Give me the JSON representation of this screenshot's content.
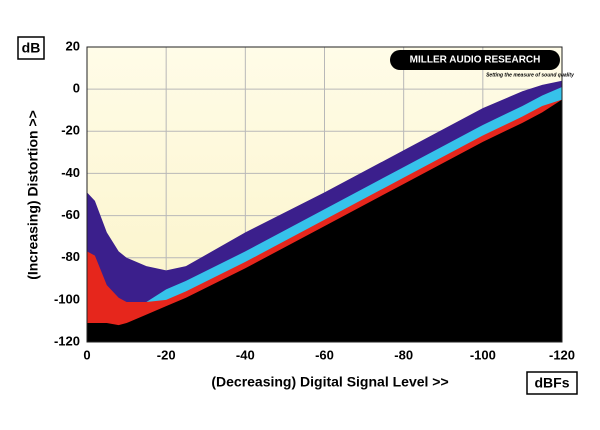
{
  "chart_data": {
    "type": "area",
    "y_unit_label": "dB",
    "x_unit_label": "dBFs",
    "ylabel": "(Increasing) Distortion >>",
    "xlabel": "(Decreasing) Digital Signal Level >>",
    "logo": "MILLER AUDIO RESEARCH",
    "logo_tagline": "Setting the measure of sound quality",
    "x": [
      0,
      -2,
      -5,
      -8,
      -10,
      -15,
      -20,
      -25,
      -40,
      -60,
      -80,
      -100,
      -110,
      -115,
      -120
    ],
    "series": [
      {
        "color": "#3b1f8c",
        "values": [
          -49,
          -53,
          -68,
          -77,
          -80,
          -84,
          -86,
          -84,
          -68,
          -49,
          -29,
          -9,
          -1,
          2,
          4
        ]
      },
      {
        "color": "#36c2ea",
        "values": [
          -101,
          -101,
          -101,
          -101,
          -101,
          -101,
          -95,
          -91,
          -77,
          -57,
          -37,
          -17,
          -8,
          -3,
          1
        ]
      },
      {
        "color": "#e6261c",
        "values": [
          -77,
          -79,
          -93,
          -99,
          -101,
          -101,
          -100,
          -96,
          -82,
          -62,
          -42,
          -22,
          -13,
          -8,
          -5
        ]
      },
      {
        "color": "#000000",
        "values": [
          -111,
          -111,
          -111,
          -112,
          -111,
          -107,
          -103,
          -99,
          -85,
          -65,
          -45,
          -25,
          -16,
          -11,
          -5
        ]
      }
    ],
    "xlim": [
      0,
      -120
    ],
    "xticks": [
      0,
      -20,
      -40,
      -60,
      -80,
      -100,
      -120
    ],
    "ylim": [
      -120,
      20
    ],
    "yticks": [
      20,
      0,
      -20,
      -40,
      -60,
      -80,
      -100,
      -120
    ],
    "grid": true
  }
}
